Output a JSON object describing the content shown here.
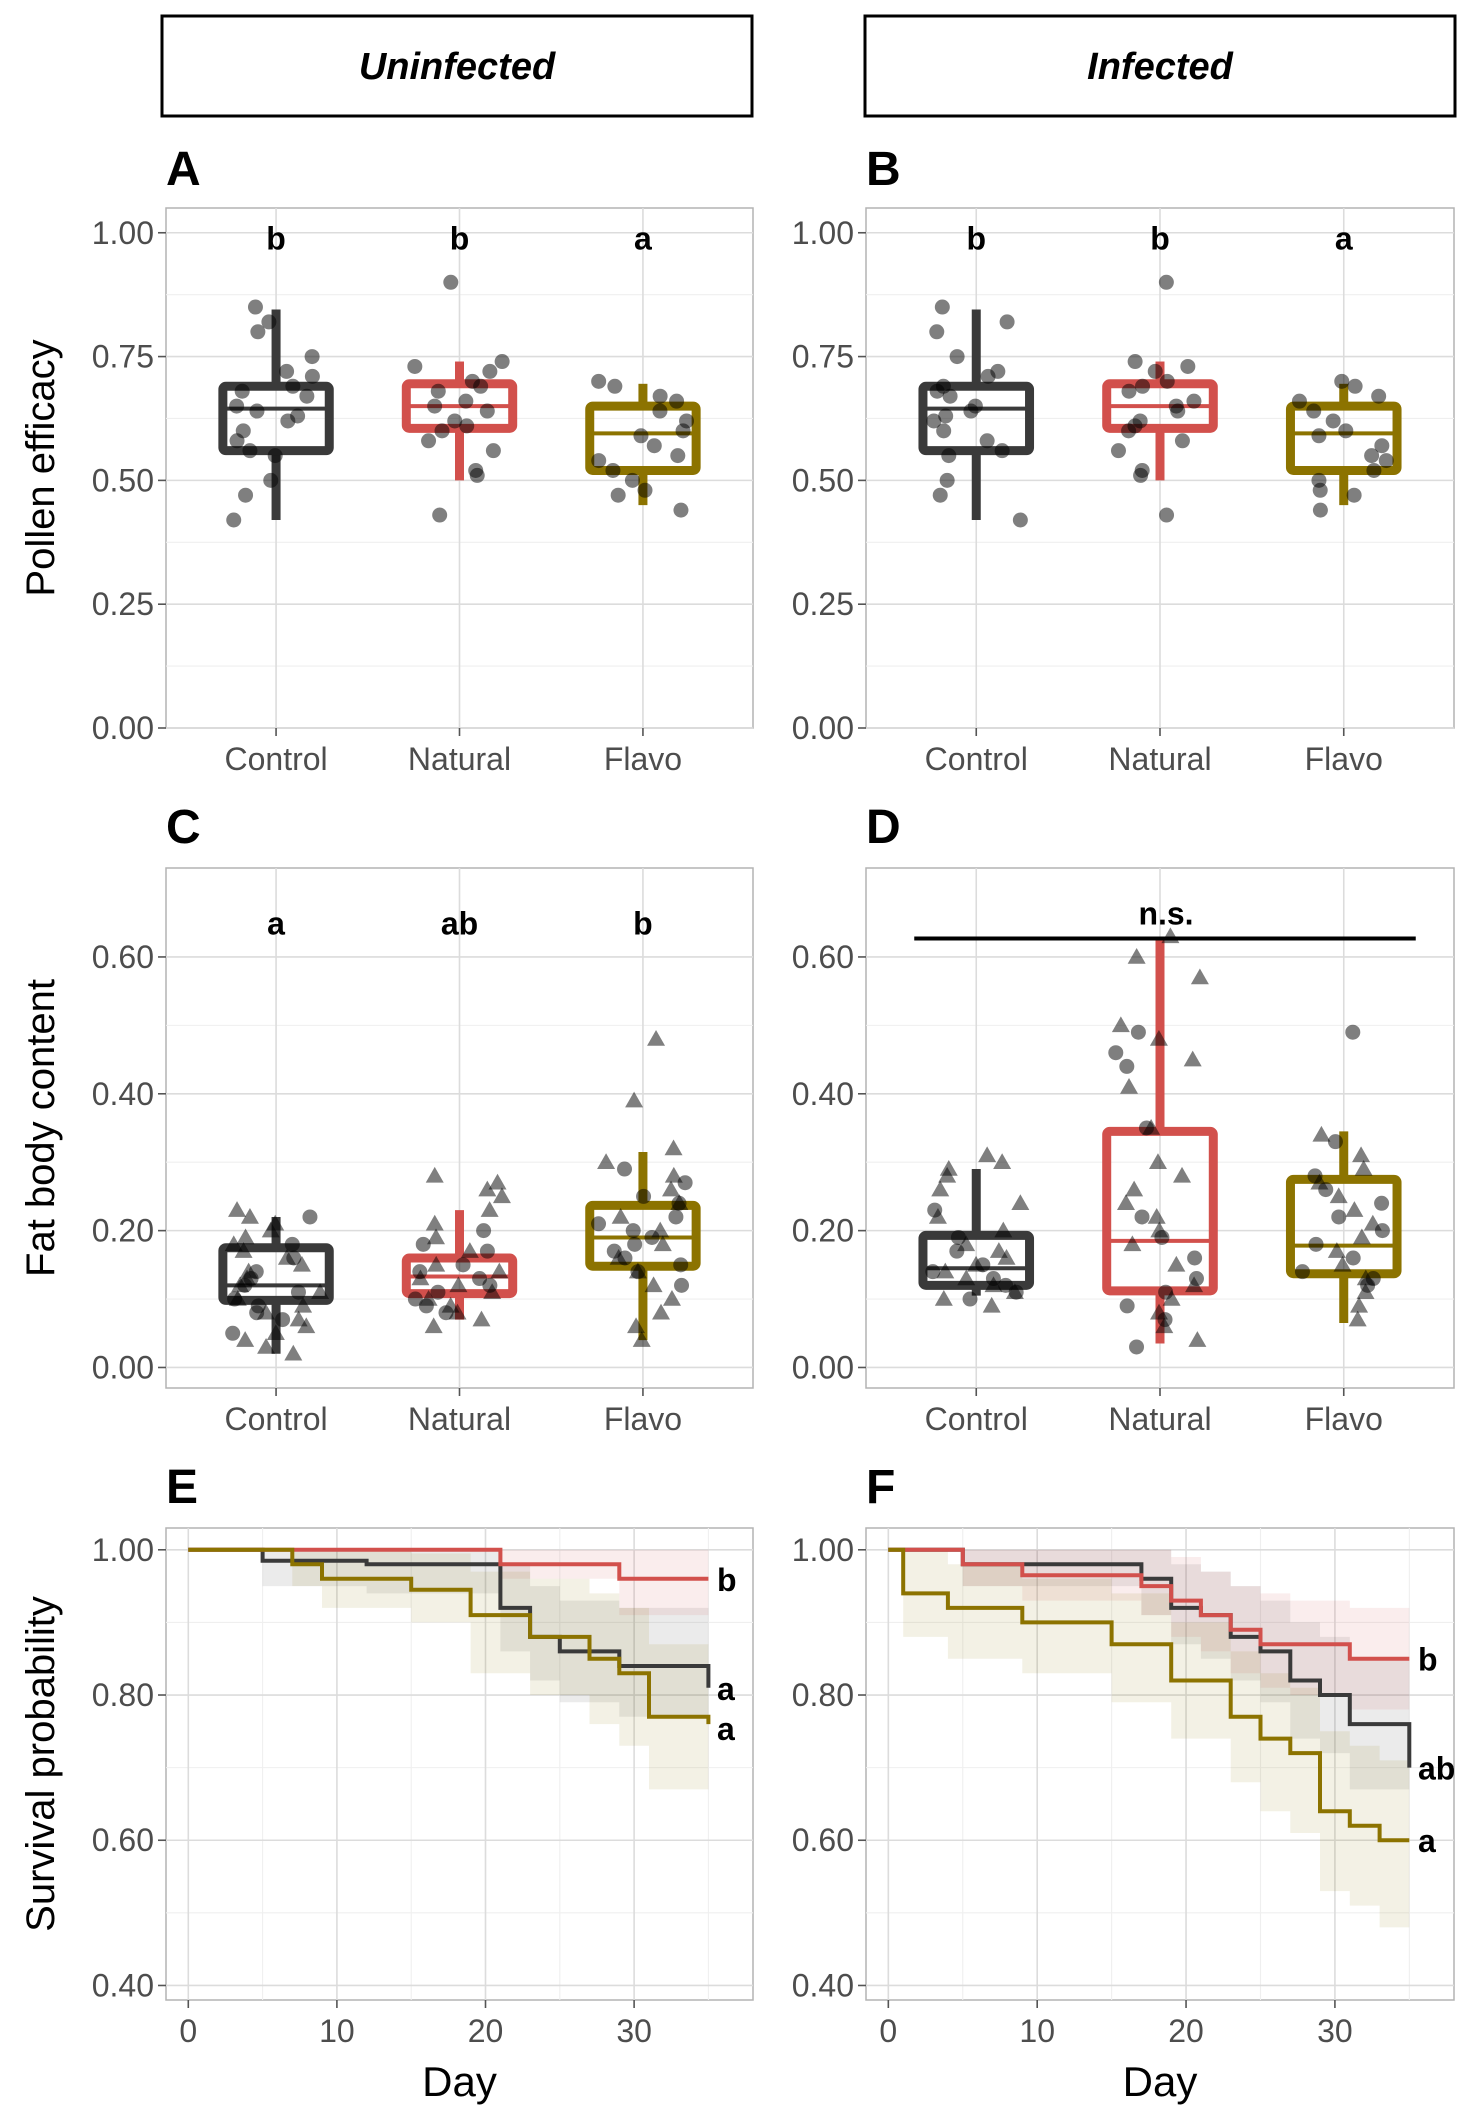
{
  "strips": [
    "Uninfected",
    "Infected"
  ],
  "colors": {
    "Control": "#3a3a3a",
    "Natural": "#d2504c",
    "Flavo": "#8c7300"
  },
  "chart_data": [
    {
      "panel": "A",
      "type": "box",
      "col": 0,
      "row": 0,
      "ylabel": "Pollen efficacy",
      "ylim": [
        0,
        1.05
      ],
      "yticks": [
        0,
        0.25,
        0.5,
        0.75,
        1.0
      ],
      "ytick_labels": [
        "0.00",
        "0.25",
        "0.50",
        "0.75",
        "1.00"
      ],
      "categories": [
        "Control",
        "Natural",
        "Flavo"
      ],
      "letters": [
        "b",
        "b",
        "a"
      ],
      "letters_y": 0.99,
      "boxes": [
        {
          "group": "Control",
          "min": 0.42,
          "q1": 0.56,
          "median": 0.645,
          "q3": 0.69,
          "max": 0.845
        },
        {
          "group": "Natural",
          "min": 0.5,
          "q1": 0.605,
          "median": 0.65,
          "q3": 0.695,
          "max": 0.74
        },
        {
          "group": "Flavo",
          "min": 0.45,
          "q1": 0.52,
          "median": 0.595,
          "q3": 0.65,
          "max": 0.695
        }
      ],
      "points": [
        {
          "group": "Control",
          "shape": "circle",
          "values": [
            0.85,
            0.82,
            0.8,
            0.75,
            0.72,
            0.71,
            0.69,
            0.68,
            0.67,
            0.65,
            0.64,
            0.63,
            0.62,
            0.6,
            0.58,
            0.56,
            0.55,
            0.5,
            0.47,
            0.42
          ]
        },
        {
          "group": "Natural",
          "shape": "circle",
          "values": [
            0.9,
            0.74,
            0.73,
            0.72,
            0.7,
            0.69,
            0.68,
            0.66,
            0.65,
            0.64,
            0.62,
            0.61,
            0.6,
            0.58,
            0.56,
            0.52,
            0.51,
            0.43
          ]
        },
        {
          "group": "Flavo",
          "shape": "circle",
          "values": [
            0.7,
            0.69,
            0.67,
            0.66,
            0.64,
            0.62,
            0.6,
            0.59,
            0.57,
            0.55,
            0.54,
            0.52,
            0.5,
            0.48,
            0.47,
            0.44
          ]
        }
      ]
    },
    {
      "panel": "B",
      "type": "box",
      "col": 1,
      "row": 0,
      "ylabel": "",
      "ylim": [
        0,
        1.05
      ],
      "yticks": [
        0,
        0.25,
        0.5,
        0.75,
        1.0
      ],
      "ytick_labels": [
        "0.00",
        "0.25",
        "0.50",
        "0.75",
        "1.00"
      ],
      "categories": [
        "Control",
        "Natural",
        "Flavo"
      ],
      "letters": [
        "b",
        "b",
        "a"
      ],
      "letters_y": 0.99,
      "boxes": [
        {
          "group": "Control",
          "min": 0.42,
          "q1": 0.56,
          "median": 0.645,
          "q3": 0.69,
          "max": 0.845
        },
        {
          "group": "Natural",
          "min": 0.5,
          "q1": 0.605,
          "median": 0.65,
          "q3": 0.695,
          "max": 0.74
        },
        {
          "group": "Flavo",
          "min": 0.45,
          "q1": 0.52,
          "median": 0.595,
          "q3": 0.65,
          "max": 0.695
        }
      ],
      "points": [
        {
          "group": "Control",
          "shape": "circle",
          "values": [
            0.85,
            0.82,
            0.8,
            0.75,
            0.72,
            0.71,
            0.69,
            0.68,
            0.67,
            0.65,
            0.64,
            0.63,
            0.62,
            0.6,
            0.58,
            0.56,
            0.55,
            0.5,
            0.47,
            0.42
          ]
        },
        {
          "group": "Natural",
          "shape": "circle",
          "values": [
            0.9,
            0.74,
            0.73,
            0.72,
            0.7,
            0.69,
            0.68,
            0.66,
            0.65,
            0.64,
            0.62,
            0.61,
            0.6,
            0.58,
            0.56,
            0.52,
            0.51,
            0.43
          ]
        },
        {
          "group": "Flavo",
          "shape": "circle",
          "values": [
            0.7,
            0.69,
            0.67,
            0.66,
            0.64,
            0.62,
            0.6,
            0.59,
            0.57,
            0.55,
            0.54,
            0.52,
            0.5,
            0.48,
            0.47,
            0.44
          ]
        }
      ]
    },
    {
      "panel": "C",
      "type": "box",
      "col": 0,
      "row": 1,
      "ylabel": "Fat body content",
      "ylim": [
        -0.03,
        0.73
      ],
      "yticks": [
        0,
        0.2,
        0.4,
        0.6
      ],
      "ytick_labels": [
        "0.00",
        "0.20",
        "0.40",
        "0.60"
      ],
      "categories": [
        "Control",
        "Natural",
        "Flavo"
      ],
      "letters": [
        "a",
        "ab",
        "b"
      ],
      "letters_y": 0.65,
      "boxes": [
        {
          "group": "Control",
          "min": 0.02,
          "q1": 0.098,
          "median": 0.12,
          "q3": 0.175,
          "max": 0.22
        },
        {
          "group": "Natural",
          "min": 0.07,
          "q1": 0.108,
          "median": 0.133,
          "q3": 0.16,
          "max": 0.23
        },
        {
          "group": "Flavo",
          "min": 0.04,
          "q1": 0.148,
          "median": 0.19,
          "q3": 0.237,
          "max": 0.315
        }
      ],
      "points": [
        {
          "group": "Control",
          "shape": "triangle",
          "values": [
            0.23,
            0.22,
            0.21,
            0.2,
            0.19,
            0.18,
            0.17,
            0.16,
            0.15,
            0.14,
            0.13,
            0.12,
            0.11,
            0.1,
            0.09,
            0.08,
            0.07,
            0.06,
            0.05,
            0.04,
            0.03,
            0.02
          ]
        },
        {
          "group": "Control",
          "shape": "circle",
          "values": [
            0.22,
            0.18,
            0.16,
            0.14,
            0.13,
            0.12,
            0.11,
            0.1,
            0.09,
            0.08,
            0.07,
            0.05
          ]
        },
        {
          "group": "Natural",
          "shape": "triangle",
          "values": [
            0.28,
            0.27,
            0.26,
            0.25,
            0.23,
            0.21,
            0.19,
            0.17,
            0.15,
            0.14,
            0.13,
            0.12,
            0.11,
            0.1,
            0.09,
            0.08,
            0.07,
            0.06
          ]
        },
        {
          "group": "Natural",
          "shape": "circle",
          "values": [
            0.2,
            0.18,
            0.17,
            0.15,
            0.14,
            0.13,
            0.12,
            0.11,
            0.1,
            0.09,
            0.08
          ]
        },
        {
          "group": "Flavo",
          "shape": "triangle",
          "values": [
            0.48,
            0.39,
            0.32,
            0.3,
            0.28,
            0.26,
            0.24,
            0.22,
            0.2,
            0.18,
            0.16,
            0.14,
            0.12,
            0.1,
            0.08,
            0.06,
            0.04
          ]
        },
        {
          "group": "Flavo",
          "shape": "circle",
          "values": [
            0.29,
            0.27,
            0.25,
            0.24,
            0.22,
            0.21,
            0.2,
            0.19,
            0.18,
            0.17,
            0.16,
            0.15,
            0.14,
            0.12
          ]
        }
      ]
    },
    {
      "panel": "D",
      "type": "box",
      "col": 1,
      "row": 1,
      "ylabel": "",
      "ylim": [
        -0.03,
        0.73
      ],
      "yticks": [
        0,
        0.2,
        0.4,
        0.6
      ],
      "ytick_labels": [
        "0.00",
        "0.20",
        "0.40",
        "0.60"
      ],
      "categories": [
        "Control",
        "Natural",
        "Flavo"
      ],
      "letters": [],
      "bracket_label": "n.s.",
      "bracket_y": 0.665,
      "boxes": [
        {
          "group": "Control",
          "min": 0.105,
          "q1": 0.12,
          "median": 0.145,
          "q3": 0.193,
          "max": 0.29
        },
        {
          "group": "Natural",
          "min": 0.035,
          "q1": 0.112,
          "median": 0.185,
          "q3": 0.345,
          "max": 0.625
        },
        {
          "group": "Flavo",
          "min": 0.065,
          "q1": 0.137,
          "median": 0.178,
          "q3": 0.275,
          "max": 0.345
        }
      ],
      "points": [
        {
          "group": "Control",
          "shape": "triangle",
          "values": [
            0.31,
            0.3,
            0.29,
            0.28,
            0.26,
            0.24,
            0.22,
            0.2,
            0.18,
            0.17,
            0.16,
            0.15,
            0.14,
            0.13,
            0.12,
            0.11,
            0.1,
            0.09
          ]
        },
        {
          "group": "Control",
          "shape": "circle",
          "values": [
            0.23,
            0.19,
            0.17,
            0.15,
            0.14,
            0.13,
            0.12,
            0.11,
            0.1
          ]
        },
        {
          "group": "Natural",
          "shape": "triangle",
          "values": [
            0.63,
            0.6,
            0.57,
            0.5,
            0.48,
            0.45,
            0.41,
            0.35,
            0.3,
            0.28,
            0.26,
            0.24,
            0.22,
            0.2,
            0.18,
            0.15,
            0.12,
            0.1,
            0.08,
            0.06,
            0.04
          ]
        },
        {
          "group": "Natural",
          "shape": "circle",
          "values": [
            0.49,
            0.46,
            0.44,
            0.35,
            0.22,
            0.19,
            0.16,
            0.13,
            0.11,
            0.09,
            0.07,
            0.03
          ]
        },
        {
          "group": "Flavo",
          "shape": "triangle",
          "values": [
            0.34,
            0.31,
            0.29,
            0.27,
            0.25,
            0.23,
            0.21,
            0.19,
            0.17,
            0.15,
            0.13,
            0.11,
            0.09,
            0.07
          ]
        },
        {
          "group": "Flavo",
          "shape": "circle",
          "values": [
            0.49,
            0.33,
            0.28,
            0.26,
            0.24,
            0.22,
            0.2,
            0.18,
            0.16,
            0.14,
            0.13,
            0.12
          ]
        }
      ]
    },
    {
      "panel": "E",
      "type": "line",
      "subtype": "step",
      "col": 0,
      "row": 2,
      "ylabel": "Survival probability",
      "xlabel": "Day",
      "xlim": [
        -1.5,
        38
      ],
      "ylim": [
        0.38,
        1.03
      ],
      "xticks": [
        0,
        10,
        20,
        30
      ],
      "xtick_labels": [
        "0",
        "10",
        "20",
        "30"
      ],
      "yticks": [
        0.4,
        0.6,
        0.8,
        1.0
      ],
      "ytick_labels": [
        "0.40",
        "0.60",
        "0.80",
        "1.00"
      ],
      "series": [
        {
          "group": "Control",
          "letter": "a",
          "x": [
            0,
            5,
            12,
            21,
            23,
            25,
            29,
            35
          ],
          "y": [
            1.0,
            0.985,
            0.98,
            0.92,
            0.88,
            0.86,
            0.84,
            0.81
          ],
          "lower": [
            1.0,
            0.95,
            0.94,
            0.86,
            0.82,
            0.79,
            0.77,
            0.73
          ],
          "upper": [
            1.0,
            1.0,
            1.0,
            0.98,
            0.95,
            0.93,
            0.92,
            0.9
          ]
        },
        {
          "group": "Natural",
          "letter": "b",
          "x": [
            0,
            21,
            29,
            35
          ],
          "y": [
            1.0,
            0.98,
            0.96,
            0.96
          ],
          "lower": [
            1.0,
            0.96,
            0.91,
            0.91
          ],
          "upper": [
            1.0,
            1.0,
            1.0,
            1.0
          ]
        },
        {
          "group": "Flavo",
          "letter": "a",
          "x": [
            0,
            7,
            9,
            15,
            19,
            23,
            27,
            29,
            31,
            35
          ],
          "y": [
            1.0,
            0.98,
            0.96,
            0.945,
            0.91,
            0.88,
            0.85,
            0.83,
            0.77,
            0.76
          ],
          "lower": [
            1.0,
            0.95,
            0.92,
            0.9,
            0.83,
            0.8,
            0.76,
            0.73,
            0.67,
            0.66
          ],
          "upper": [
            1.0,
            1.0,
            1.0,
            0.995,
            0.97,
            0.96,
            0.94,
            0.92,
            0.87,
            0.86
          ]
        }
      ]
    },
    {
      "panel": "F",
      "type": "line",
      "subtype": "step",
      "col": 1,
      "row": 2,
      "ylabel": "",
      "xlabel": "Day",
      "xlim": [
        -1.5,
        38
      ],
      "ylim": [
        0.38,
        1.03
      ],
      "xticks": [
        0,
        10,
        20,
        30
      ],
      "xtick_labels": [
        "0",
        "10",
        "20",
        "30"
      ],
      "yticks": [
        0.4,
        0.6,
        0.8,
        1.0
      ],
      "ytick_labels": [
        "0.40",
        "0.60",
        "0.80",
        "1.00"
      ],
      "series": [
        {
          "group": "Control",
          "letter": "ab",
          "x": [
            0,
            5,
            17,
            19,
            21,
            23,
            25,
            27,
            29,
            31,
            35
          ],
          "y": [
            1.0,
            0.98,
            0.96,
            0.92,
            0.91,
            0.88,
            0.86,
            0.82,
            0.8,
            0.76,
            0.7
          ],
          "lower": [
            1.0,
            0.95,
            0.91,
            0.87,
            0.85,
            0.82,
            0.79,
            0.74,
            0.72,
            0.67,
            0.61
          ],
          "upper": [
            1.0,
            1.0,
            1.0,
            0.98,
            0.97,
            0.95,
            0.93,
            0.9,
            0.88,
            0.85,
            0.8
          ]
        },
        {
          "group": "Natural",
          "letter": "b",
          "x": [
            0,
            5,
            9,
            17,
            19,
            21,
            23,
            25,
            27,
            31,
            35
          ],
          "y": [
            1.0,
            0.98,
            0.965,
            0.95,
            0.93,
            0.91,
            0.89,
            0.87,
            0.87,
            0.85,
            0.85
          ],
          "lower": [
            1.0,
            0.95,
            0.93,
            0.91,
            0.88,
            0.86,
            0.83,
            0.81,
            0.8,
            0.78,
            0.78
          ],
          "upper": [
            1.0,
            1.0,
            1.0,
            1.0,
            0.99,
            0.97,
            0.95,
            0.94,
            0.93,
            0.92,
            0.92
          ]
        },
        {
          "group": "Flavo",
          "letter": "a",
          "x": [
            0,
            1,
            4,
            9,
            15,
            19,
            23,
            25,
            27,
            29,
            31,
            33,
            35
          ],
          "y": [
            1.0,
            0.94,
            0.92,
            0.9,
            0.87,
            0.82,
            0.77,
            0.74,
            0.72,
            0.64,
            0.62,
            0.6,
            0.6
          ],
          "lower": [
            1.0,
            0.88,
            0.85,
            0.83,
            0.79,
            0.74,
            0.68,
            0.64,
            0.61,
            0.53,
            0.51,
            0.48,
            0.48
          ],
          "upper": [
            1.0,
            1.0,
            0.98,
            0.96,
            0.94,
            0.9,
            0.86,
            0.83,
            0.81,
            0.75,
            0.73,
            0.71,
            0.71
          ]
        }
      ]
    }
  ]
}
